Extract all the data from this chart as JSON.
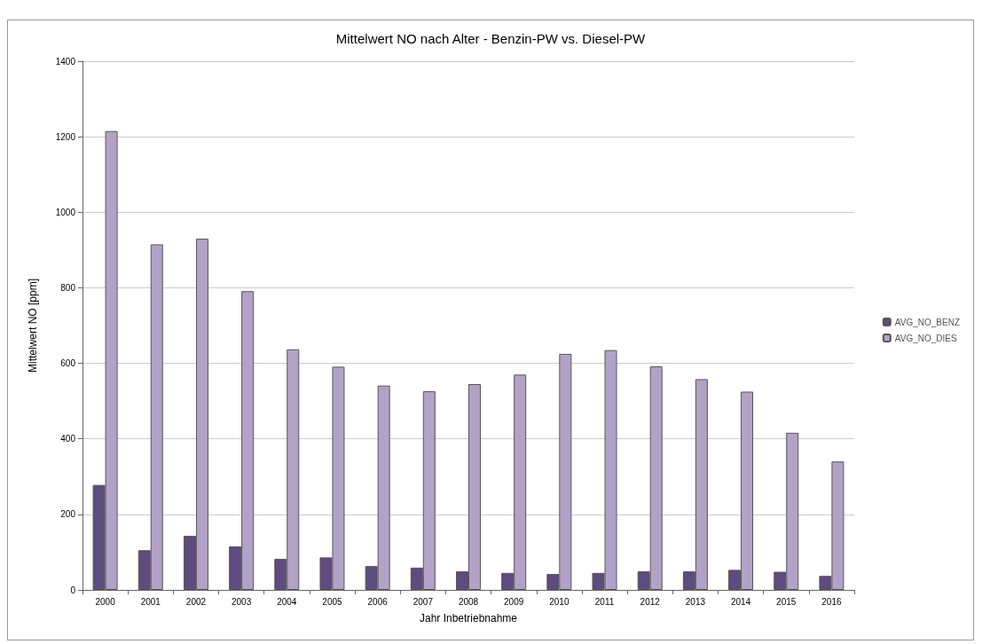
{
  "chart_data": {
    "type": "bar",
    "title": "Mittelwert NO nach Alter - Benzin-PW vs. Diesel-PW",
    "xlabel": "Jahr Inbetriebnahme",
    "ylabel": "Mittelwert NO [ppm]",
    "categories": [
      "2000",
      "2001",
      "2002",
      "2003",
      "2004",
      "2005",
      "2006",
      "2007",
      "2008",
      "2009",
      "2010",
      "2011",
      "2012",
      "2013",
      "2014",
      "2015",
      "2016"
    ],
    "series": [
      {
        "name": "AVG_NO_BENZ",
        "color": "#5f4b7f",
        "values": [
          278,
          105,
          143,
          115,
          82,
          86,
          63,
          59,
          49,
          45,
          42,
          45,
          49,
          49,
          53,
          48,
          37
        ]
      },
      {
        "name": "AVG_NO_DIES",
        "color": "#b3a2c8",
        "values": [
          1215,
          915,
          930,
          791,
          637,
          591,
          541,
          526,
          545,
          570,
          625,
          635,
          592,
          558,
          525,
          416,
          340
        ]
      }
    ],
    "ylim": [
      0,
      1400
    ],
    "yticks": [
      0,
      200,
      400,
      600,
      800,
      1000,
      1200,
      1400
    ],
    "grid": "y",
    "legend": "right"
  }
}
